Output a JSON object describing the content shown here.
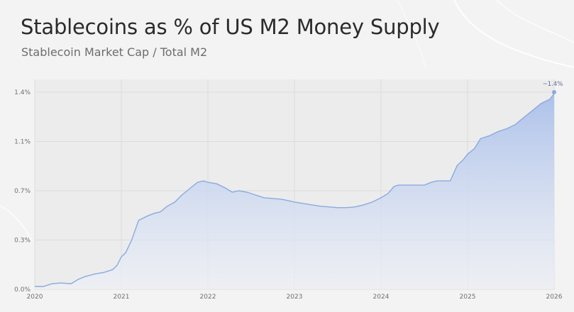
{
  "title": "Stablecoins as % of US M2 Money Supply",
  "subtitle": "Stablecoin Market Cap / Total M2",
  "chart_data": {
    "type": "area",
    "title": "Stablecoins as % of US M2 Money Supply",
    "subtitle": "Stablecoin Market Cap / Total M2",
    "xlabel": "",
    "ylabel": "",
    "xlim": [
      2020,
      2026
    ],
    "ylim": [
      0,
      1.4
    ],
    "x_ticks": [
      "2020",
      "2021",
      "2022",
      "2023",
      "2024",
      "2025",
      "2026"
    ],
    "y_ticks": [
      {
        "value": 0,
        "label": "0.0%"
      },
      {
        "value": 0.35,
        "label": "0.3%"
      },
      {
        "value": 0.7,
        "label": "0.7%"
      },
      {
        "value": 1.05,
        "label": "1.1%"
      },
      {
        "value": 1.4,
        "label": "1.4%"
      }
    ],
    "grid": true,
    "annotation": {
      "x": 2026,
      "y": 1.4,
      "text": "~1.4%"
    },
    "colors": {
      "line": "#8aaae0",
      "fill_top": "#a9bfea",
      "fill_bottom": "#eef1f8",
      "grid": "#dcdcdc",
      "plot_bg": "#ececec"
    },
    "series": [
      {
        "x": [
          2020.0,
          2020.1,
          2020.2,
          2020.3,
          2020.42,
          2020.5,
          2020.58,
          2020.7,
          2020.8,
          2020.9,
          2020.95,
          2021.0,
          2021.05,
          2021.12,
          2021.2,
          2021.3,
          2021.38,
          2021.45,
          2021.53,
          2021.62,
          2021.7,
          2021.8,
          2021.88,
          2021.95,
          2022.0,
          2022.1,
          2022.2,
          2022.28,
          2022.36,
          2022.45,
          2022.55,
          2022.65,
          2022.75,
          2022.85,
          2022.93,
          2023.0,
          2023.1,
          2023.2,
          2023.3,
          2023.4,
          2023.5,
          2023.6,
          2023.7,
          2023.8,
          2023.9,
          2024.0,
          2024.08,
          2024.15,
          2024.2,
          2024.3,
          2024.4,
          2024.5,
          2024.58,
          2024.65,
          2024.75,
          2024.8,
          2024.88,
          2024.95,
          2025.0,
          2025.08,
          2025.15,
          2025.25,
          2025.35,
          2025.45,
          2025.55,
          2025.65,
          2025.75,
          2025.85,
          2025.95,
          2026.0
        ],
        "y": [
          0.02,
          0.02,
          0.04,
          0.045,
          0.04,
          0.07,
          0.09,
          0.11,
          0.12,
          0.14,
          0.17,
          0.23,
          0.26,
          0.35,
          0.49,
          0.52,
          0.54,
          0.55,
          0.59,
          0.62,
          0.67,
          0.72,
          0.76,
          0.77,
          0.76,
          0.75,
          0.72,
          0.69,
          0.7,
          0.69,
          0.67,
          0.65,
          0.645,
          0.64,
          0.63,
          0.62,
          0.61,
          0.6,
          0.59,
          0.585,
          0.58,
          0.58,
          0.585,
          0.6,
          0.62,
          0.65,
          0.68,
          0.73,
          0.74,
          0.74,
          0.74,
          0.74,
          0.76,
          0.77,
          0.77,
          0.77,
          0.88,
          0.92,
          0.96,
          1.0,
          1.07,
          1.09,
          1.12,
          1.14,
          1.17,
          1.22,
          1.27,
          1.32,
          1.35,
          1.39
        ]
      }
    ]
  }
}
